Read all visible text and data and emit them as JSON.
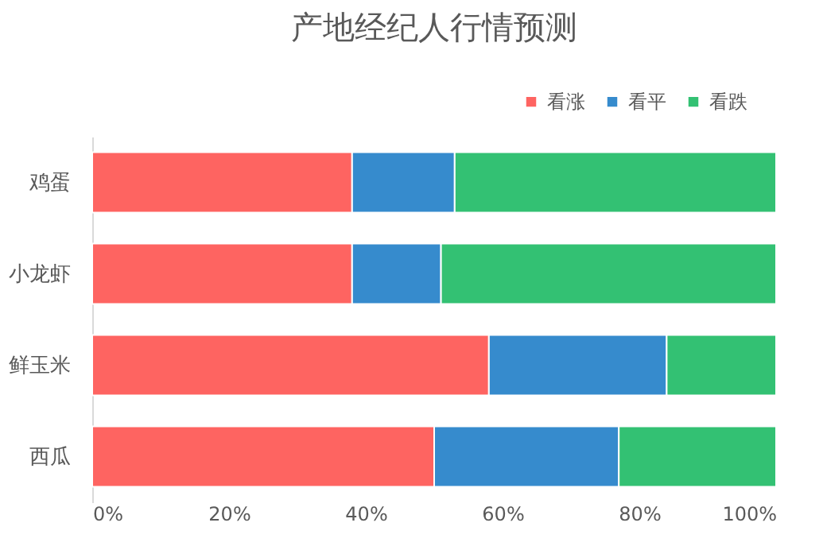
{
  "chart_data": {
    "type": "bar",
    "orientation": "horizontal",
    "stacked": true,
    "title": "产地经纪人行情预测",
    "categories": [
      "鸡蛋",
      "小龙虾",
      "鲜玉米",
      "西瓜"
    ],
    "series": [
      {
        "name": "看涨",
        "color": "#fe6461",
        "values": [
          38,
          38,
          58,
          50
        ]
      },
      {
        "name": "看平",
        "color": "#368bcd",
        "values": [
          15,
          13,
          26,
          27
        ]
      },
      {
        "name": "看跌",
        "color": "#33c173",
        "values": [
          47,
          49,
          16,
          23
        ]
      }
    ],
    "xlim": [
      0,
      100
    ],
    "xticks": [
      {
        "value": 0,
        "label": "0%"
      },
      {
        "value": 20,
        "label": "20%"
      },
      {
        "value": 40,
        "label": "40%"
      },
      {
        "value": 60,
        "label": "60%"
      },
      {
        "value": 80,
        "label": "80%"
      },
      {
        "value": 100,
        "label": "100%"
      }
    ],
    "grid": false,
    "legend": "top right"
  }
}
